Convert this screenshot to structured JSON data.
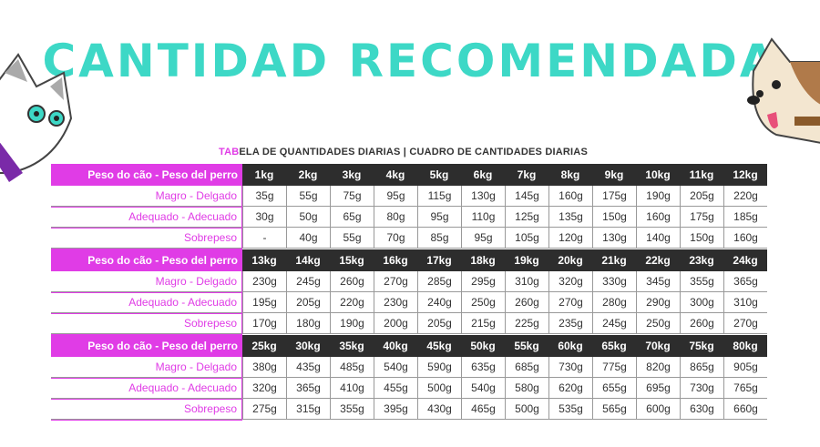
{
  "title": "CANTIDAD RECOMENDADA",
  "subtitle": {
    "highlight": "TAB",
    "rest": "ELA DE QUANTIDADES DIARIAS | CUADRO DE CANTIDADES DIARIAS"
  },
  "colors": {
    "title": "#3dd8c6",
    "accent": "#e03ce6",
    "header": "#2d2d2d"
  },
  "illustrations": [
    "cat-icon",
    "dog-icon"
  ],
  "header_label": "Peso do cão - Peso del perro",
  "row_labels": [
    "Magro - Delgado",
    "Adequado - Adecuado",
    "Sobrepeso"
  ],
  "blocks": [
    {
      "weights": [
        "1kg",
        "2kg",
        "3kg",
        "4kg",
        "5kg",
        "6kg",
        "7kg",
        "8kg",
        "9kg",
        "10kg",
        "11kg",
        "12kg"
      ],
      "rows": [
        [
          "35g",
          "55g",
          "75g",
          "95g",
          "115g",
          "130g",
          "145g",
          "160g",
          "175g",
          "190g",
          "205g",
          "220g"
        ],
        [
          "30g",
          "50g",
          "65g",
          "80g",
          "95g",
          "110g",
          "125g",
          "135g",
          "150g",
          "160g",
          "175g",
          "185g"
        ],
        [
          "-",
          "40g",
          "55g",
          "70g",
          "85g",
          "95g",
          "105g",
          "120g",
          "130g",
          "140g",
          "150g",
          "160g"
        ]
      ]
    },
    {
      "weights": [
        "13kg",
        "14kg",
        "15kg",
        "16kg",
        "17kg",
        "18kg",
        "19kg",
        "20kg",
        "21kg",
        "22kg",
        "23kg",
        "24kg"
      ],
      "rows": [
        [
          "230g",
          "245g",
          "260g",
          "270g",
          "285g",
          "295g",
          "310g",
          "320g",
          "330g",
          "345g",
          "355g",
          "365g"
        ],
        [
          "195g",
          "205g",
          "220g",
          "230g",
          "240g",
          "250g",
          "260g",
          "270g",
          "280g",
          "290g",
          "300g",
          "310g"
        ],
        [
          "170g",
          "180g",
          "190g",
          "200g",
          "205g",
          "215g",
          "225g",
          "235g",
          "245g",
          "250g",
          "260g",
          "270g"
        ]
      ]
    },
    {
      "weights": [
        "25kg",
        "30kg",
        "35kg",
        "40kg",
        "45kg",
        "50kg",
        "55kg",
        "60kg",
        "65kg",
        "70kg",
        "75kg",
        "80kg"
      ],
      "rows": [
        [
          "380g",
          "435g",
          "485g",
          "540g",
          "590g",
          "635g",
          "685g",
          "730g",
          "775g",
          "820g",
          "865g",
          "905g"
        ],
        [
          "320g",
          "365g",
          "410g",
          "455g",
          "500g",
          "540g",
          "580g",
          "620g",
          "655g",
          "695g",
          "730g",
          "765g"
        ],
        [
          "275g",
          "315g",
          "355g",
          "395g",
          "430g",
          "465g",
          "500g",
          "535g",
          "565g",
          "600g",
          "630g",
          "660g"
        ]
      ]
    }
  ]
}
